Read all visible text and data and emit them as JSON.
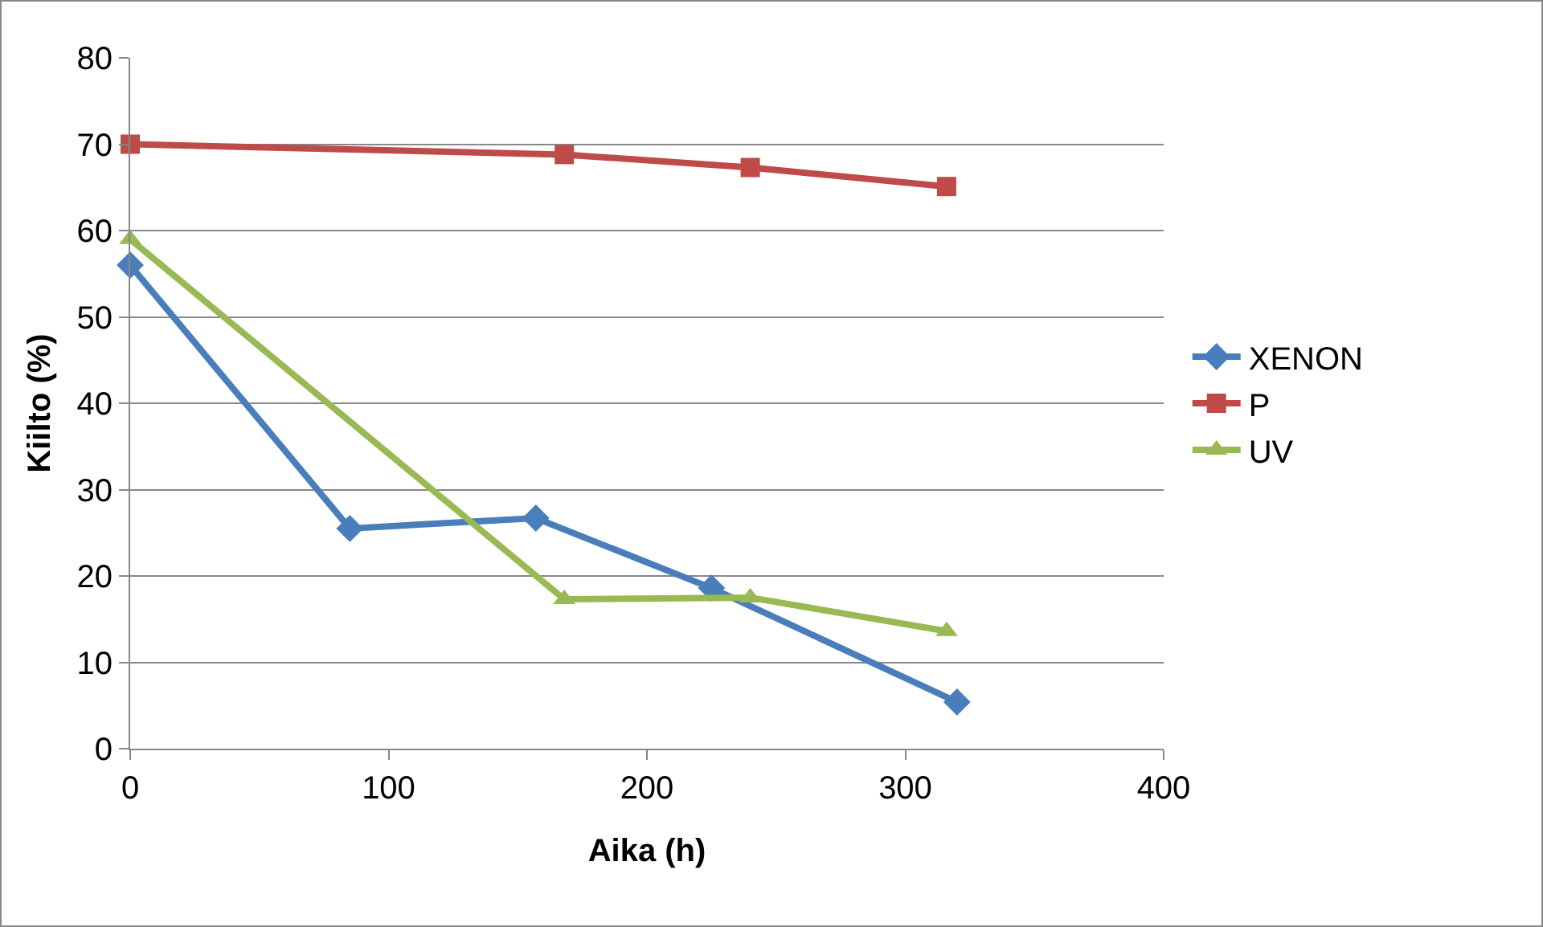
{
  "chart_data": {
    "type": "line",
    "xlabel": "Aika (h)",
    "ylabel": "Kiilto (%)",
    "xlim": [
      0,
      400
    ],
    "xticks": [
      0,
      100,
      200,
      300,
      400
    ],
    "ylim": [
      0,
      80
    ],
    "yticks": [
      0,
      10,
      20,
      30,
      40,
      50,
      60,
      70,
      80
    ],
    "grid": "y",
    "legend": "right",
    "line_style": "solid",
    "series": [
      {
        "name": "XENON",
        "color": "#4a7ebb",
        "marker": "diamond",
        "x": [
          0,
          85,
          157,
          225,
          320
        ],
        "values": [
          56,
          25.5,
          26.7,
          18.6,
          5.4
        ]
      },
      {
        "name": "P",
        "color": "#be4b48",
        "marker": "square",
        "x": [
          0,
          168,
          240,
          316
        ],
        "values": [
          70,
          68.8,
          67.3,
          65.1
        ]
      },
      {
        "name": "UV",
        "color": "#98b954",
        "marker": "triangle",
        "x": [
          0,
          168,
          240,
          316
        ],
        "values": [
          59,
          17.3,
          17.5,
          13.6
        ]
      }
    ]
  }
}
